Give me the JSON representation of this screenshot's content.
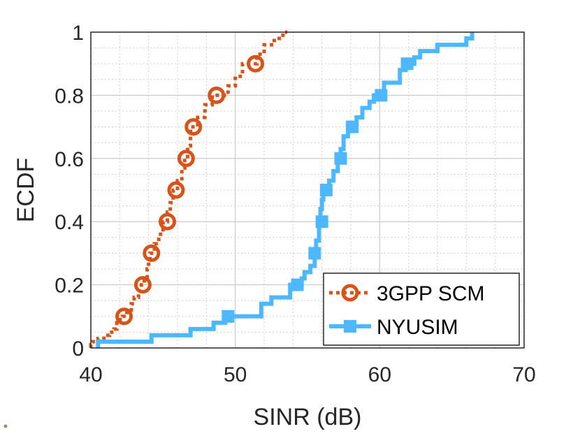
{
  "chart_data": {
    "type": "line",
    "xlabel": "SINR (dB)",
    "ylabel": "ECDF",
    "xlim": [
      40,
      70
    ],
    "ylim": [
      0,
      1
    ],
    "xticks": [
      40,
      50,
      60,
      70
    ],
    "yticks": [
      0,
      0.2,
      0.4,
      0.6,
      0.8,
      1
    ],
    "ytick_labels": [
      "0",
      "0.2",
      "0.4",
      "0.6",
      "0.8",
      "1"
    ],
    "grid": true,
    "minor_grid": true,
    "legend_position": "bottom-right",
    "series": [
      {
        "name": "3GPP SCM",
        "color": "#d95319",
        "line_style": "dotted",
        "marker": "circle",
        "step_points": [
          [
            39.4,
            0.0
          ],
          [
            39.4,
            0.01
          ],
          [
            40.1,
            0.01
          ],
          [
            40.1,
            0.02
          ],
          [
            40.5,
            0.02
          ],
          [
            40.5,
            0.03
          ],
          [
            40.9,
            0.03
          ],
          [
            40.9,
            0.04
          ],
          [
            41.3,
            0.04
          ],
          [
            41.3,
            0.05
          ],
          [
            41.6,
            0.05
          ],
          [
            41.6,
            0.06
          ],
          [
            41.8,
            0.06
          ],
          [
            41.8,
            0.08
          ],
          [
            42.0,
            0.08
          ],
          [
            42.0,
            0.09
          ],
          [
            42.2,
            0.09
          ],
          [
            42.2,
            0.1
          ],
          [
            42.5,
            0.1
          ],
          [
            42.5,
            0.12
          ],
          [
            42.8,
            0.12
          ],
          [
            42.8,
            0.14
          ],
          [
            43.0,
            0.14
          ],
          [
            43.0,
            0.16
          ],
          [
            43.3,
            0.16
          ],
          [
            43.3,
            0.18
          ],
          [
            43.5,
            0.18
          ],
          [
            43.5,
            0.2
          ],
          [
            43.7,
            0.2
          ],
          [
            43.7,
            0.22
          ],
          [
            43.9,
            0.22
          ],
          [
            43.9,
            0.25
          ],
          [
            44.0,
            0.25
          ],
          [
            44.0,
            0.28
          ],
          [
            44.1,
            0.28
          ],
          [
            44.1,
            0.3
          ],
          [
            44.4,
            0.3
          ],
          [
            44.4,
            0.33
          ],
          [
            44.7,
            0.33
          ],
          [
            44.7,
            0.36
          ],
          [
            45.0,
            0.36
          ],
          [
            45.0,
            0.4
          ],
          [
            45.3,
            0.4
          ],
          [
            45.3,
            0.43
          ],
          [
            45.5,
            0.43
          ],
          [
            45.5,
            0.46
          ],
          [
            45.7,
            0.46
          ],
          [
            45.7,
            0.5
          ],
          [
            46.0,
            0.5
          ],
          [
            46.0,
            0.53
          ],
          [
            46.3,
            0.53
          ],
          [
            46.3,
            0.57
          ],
          [
            46.5,
            0.57
          ],
          [
            46.5,
            0.6
          ],
          [
            46.7,
            0.6
          ],
          [
            46.7,
            0.64
          ],
          [
            46.9,
            0.64
          ],
          [
            46.9,
            0.7
          ],
          [
            47.4,
            0.7
          ],
          [
            47.4,
            0.73
          ],
          [
            47.9,
            0.73
          ],
          [
            47.9,
            0.77
          ],
          [
            48.4,
            0.77
          ],
          [
            48.4,
            0.8
          ],
          [
            49.5,
            0.8
          ],
          [
            49.5,
            0.83
          ],
          [
            50.0,
            0.83
          ],
          [
            50.0,
            0.86
          ],
          [
            50.5,
            0.86
          ],
          [
            50.5,
            0.9
          ],
          [
            51.5,
            0.9
          ],
          [
            51.5,
            0.93
          ],
          [
            52.0,
            0.93
          ],
          [
            52.0,
            0.96
          ],
          [
            52.7,
            0.96
          ],
          [
            52.7,
            0.98
          ],
          [
            53.3,
            0.98
          ],
          [
            53.3,
            1.0
          ],
          [
            53.6,
            1.0
          ]
        ],
        "markers": [
          [
            42.3,
            0.1
          ],
          [
            43.6,
            0.2
          ],
          [
            44.2,
            0.3
          ],
          [
            45.3,
            0.4
          ],
          [
            45.9,
            0.5
          ],
          [
            46.6,
            0.6
          ],
          [
            47.1,
            0.7
          ],
          [
            48.7,
            0.8
          ],
          [
            51.4,
            0.9
          ]
        ]
      },
      {
        "name": "NYUSIM",
        "color": "#4db8ff",
        "line_style": "solid",
        "marker": "square",
        "step_points": [
          [
            40.5,
            0.0
          ],
          [
            40.5,
            0.02
          ],
          [
            44.2,
            0.02
          ],
          [
            44.2,
            0.04
          ],
          [
            46.9,
            0.04
          ],
          [
            46.9,
            0.06
          ],
          [
            48.5,
            0.06
          ],
          [
            48.5,
            0.08
          ],
          [
            49.3,
            0.08
          ],
          [
            49.3,
            0.1
          ],
          [
            51.8,
            0.1
          ],
          [
            51.8,
            0.14
          ],
          [
            52.5,
            0.14
          ],
          [
            52.5,
            0.16
          ],
          [
            53.8,
            0.16
          ],
          [
            53.8,
            0.2
          ],
          [
            54.6,
            0.2
          ],
          [
            54.6,
            0.22
          ],
          [
            54.8,
            0.22
          ],
          [
            54.8,
            0.24
          ],
          [
            55.2,
            0.24
          ],
          [
            55.2,
            0.26
          ],
          [
            55.5,
            0.26
          ],
          [
            55.5,
            0.3
          ],
          [
            55.6,
            0.3
          ],
          [
            55.6,
            0.34
          ],
          [
            55.8,
            0.34
          ],
          [
            55.8,
            0.4
          ],
          [
            55.9,
            0.4
          ],
          [
            55.9,
            0.44
          ],
          [
            56.0,
            0.44
          ],
          [
            56.0,
            0.47
          ],
          [
            56.1,
            0.47
          ],
          [
            56.1,
            0.5
          ],
          [
            56.5,
            0.5
          ],
          [
            56.5,
            0.53
          ],
          [
            56.8,
            0.53
          ],
          [
            56.8,
            0.56
          ],
          [
            57.1,
            0.56
          ],
          [
            57.1,
            0.6
          ],
          [
            57.3,
            0.6
          ],
          [
            57.3,
            0.63
          ],
          [
            57.5,
            0.63
          ],
          [
            57.5,
            0.67
          ],
          [
            57.8,
            0.67
          ],
          [
            57.8,
            0.7
          ],
          [
            58.4,
            0.7
          ],
          [
            58.4,
            0.73
          ],
          [
            58.8,
            0.73
          ],
          [
            58.8,
            0.76
          ],
          [
            59.3,
            0.76
          ],
          [
            59.3,
            0.78
          ],
          [
            59.6,
            0.78
          ],
          [
            59.6,
            0.8
          ],
          [
            60.3,
            0.8
          ],
          [
            60.3,
            0.84
          ],
          [
            61.4,
            0.84
          ],
          [
            61.4,
            0.88
          ],
          [
            61.8,
            0.88
          ],
          [
            61.8,
            0.9
          ],
          [
            62.4,
            0.9
          ],
          [
            62.4,
            0.92
          ],
          [
            62.8,
            0.92
          ],
          [
            62.8,
            0.94
          ],
          [
            64.0,
            0.94
          ],
          [
            64.0,
            0.96
          ],
          [
            66.0,
            0.96
          ],
          [
            66.0,
            0.98
          ],
          [
            66.4,
            0.98
          ],
          [
            66.4,
            1.0
          ]
        ],
        "markers": [
          [
            49.5,
            0.1
          ],
          [
            54.3,
            0.2
          ],
          [
            55.5,
            0.3
          ],
          [
            56.0,
            0.4
          ],
          [
            56.3,
            0.5
          ],
          [
            57.3,
            0.6
          ],
          [
            58.1,
            0.7
          ],
          [
            60.1,
            0.8
          ],
          [
            61.9,
            0.9
          ]
        ]
      }
    ]
  }
}
